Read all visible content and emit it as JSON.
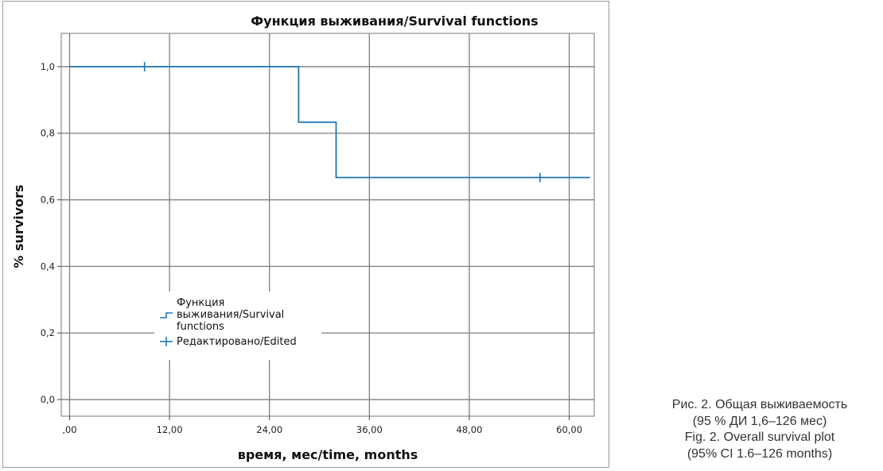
{
  "chart_data": {
    "type": "line",
    "step": true,
    "title": "Функция выживания/Survival functions",
    "xlabel": "время, мес/time, months",
    "ylabel": "% survivors",
    "xlim": [
      -1,
      63
    ],
    "ylim": [
      -0.05,
      1.1
    ],
    "grid": true,
    "x_ticks": [
      0,
      12,
      24,
      36,
      48,
      60
    ],
    "x_tick_labels": [
      ",00",
      "12,00",
      "24,00",
      "36,00",
      "48,00",
      "60,00"
    ],
    "y_ticks": [
      0,
      0.2,
      0.4,
      0.6,
      0.8,
      1.0
    ],
    "y_tick_labels": [
      "0,0",
      "0,2",
      "0,4",
      "0,6",
      "0,8",
      "1,0"
    ],
    "legend_position": "lower-left",
    "series": [
      {
        "name": "Функция выживания/Survival functions",
        "legend_lines": [
          "Функция",
          "выживания/Survival",
          "functions"
        ],
        "color": "#1f77b4",
        "points": [
          [
            0,
            1.0
          ],
          [
            27.5,
            1.0
          ],
          [
            27.5,
            0.833
          ],
          [
            32,
            0.833
          ],
          [
            32,
            0.667
          ],
          [
            62.5,
            0.667
          ]
        ]
      },
      {
        "name": "Редактировано/Edited",
        "color": "#1f77b4",
        "marker": "+",
        "points": [
          [
            9,
            1.0
          ],
          [
            56.5,
            0.667
          ]
        ]
      }
    ]
  },
  "caption": {
    "lines": [
      "Рис. 2. Общая выживаемость",
      "(95 % ДИ 1,6–126 мес)",
      "Fig. 2. Overall survival plot",
      "(95% CI 1.6–126 months)"
    ]
  }
}
